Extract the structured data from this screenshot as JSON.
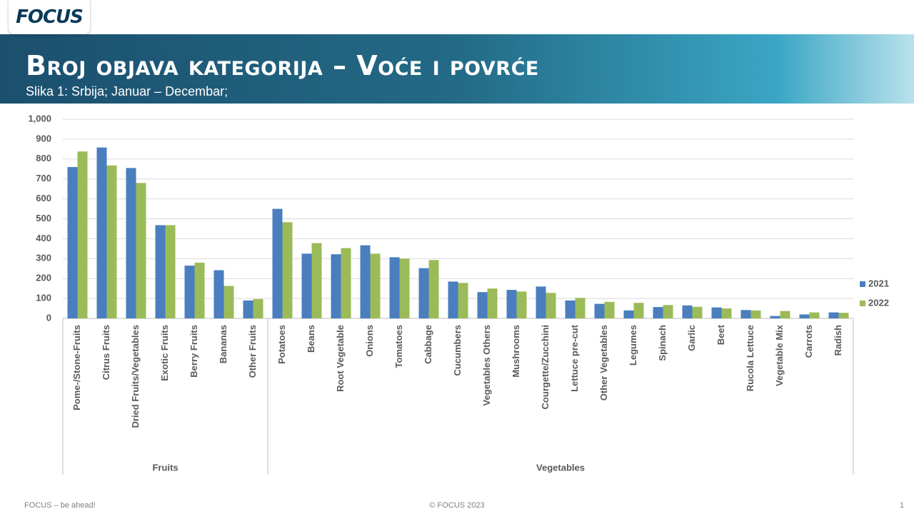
{
  "header": {
    "logo": "FOCUS",
    "title": "Broj objava kategorija – Voće i povrće",
    "subtitle": "Slika 1: Srbija; Januar – Decembar;"
  },
  "chart_data": {
    "type": "bar",
    "groups": [
      {
        "name": "Fruits",
        "categories": [
          "Pome-/Stone-Fruits",
          "Citrus Fruits",
          "Dried Fruits/Vegetables",
          "Exotic Fruits",
          "Berry Fruits",
          "Bananas",
          "Other Fruits"
        ]
      },
      {
        "name": "Vegetables",
        "categories": [
          "Potatoes",
          "Beans",
          "Root Vegetable",
          "Onions",
          "Tomatoes",
          "Cabbage",
          "Cucumbers",
          "Vegetables Others",
          "Mushrooms",
          "Courgette/Zucchini",
          "Lettuce pre-cut",
          "Other Vegetables",
          "Legumes",
          "Spinach",
          "Garlic",
          "Beet",
          "Rucola Lettuce",
          "Vegetable Mix",
          "Carrots",
          "Radish"
        ]
      }
    ],
    "series": [
      {
        "name": "2021",
        "color": "#4a7ebf",
        "values": [
          760,
          858,
          755,
          468,
          265,
          242,
          90,
          550,
          325,
          322,
          367,
          307,
          252,
          185,
          132,
          143,
          160,
          90,
          73,
          40,
          57,
          65,
          55,
          42,
          12,
          20,
          30
        ]
      },
      {
        "name": "2022",
        "color": "#9bbb59",
        "values": [
          838,
          768,
          680,
          468,
          280,
          163,
          97,
          483,
          378,
          353,
          325,
          300,
          293,
          178,
          150,
          135,
          128,
          103,
          83,
          78,
          67,
          58,
          50,
          40,
          37,
          30,
          28
        ]
      }
    ],
    "ylim": [
      0,
      1000
    ],
    "yticks": [
      0,
      100,
      200,
      300,
      400,
      500,
      600,
      700,
      800,
      900,
      {
        "value": 1000,
        "label": "1,000"
      }
    ],
    "grid": true,
    "legend": "right"
  },
  "footer": {
    "left": "FOCUS – be ahead!",
    "center": "© FOCUS 2023",
    "page": "1"
  }
}
